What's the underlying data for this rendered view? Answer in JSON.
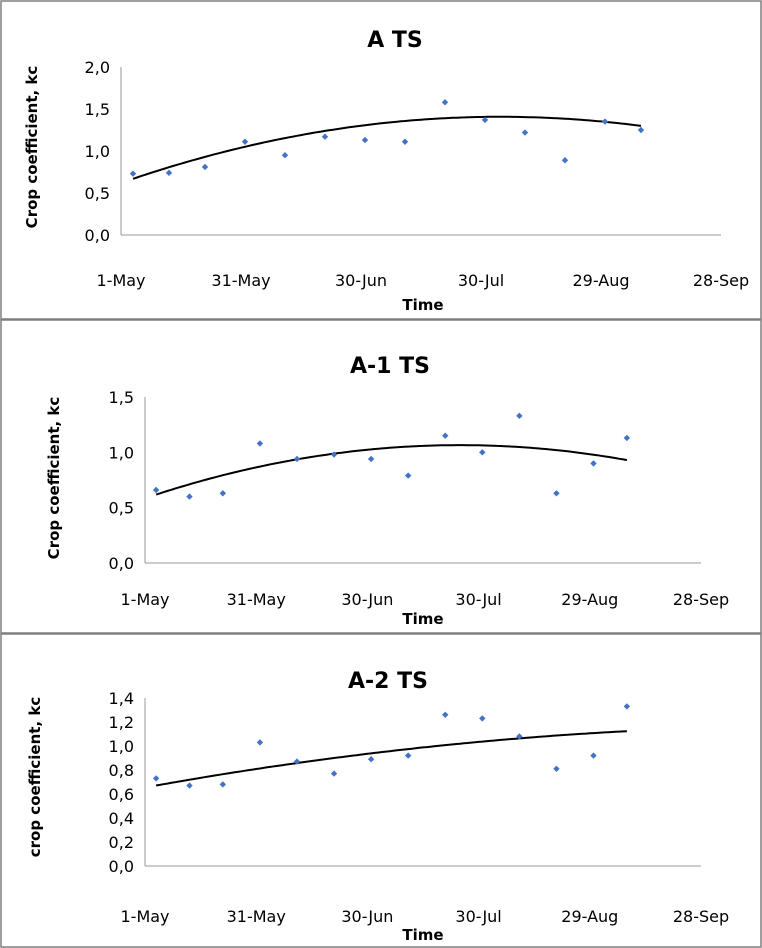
{
  "chart_data": [
    {
      "type": "scatter",
      "title": "A TS",
      "xlabel": "Time",
      "ylabel": "Crop coefficient, kc",
      "x_ticks": [
        "1-May",
        "31-May",
        "30-Jun",
        "30-Jul",
        "29-Aug",
        "28-Sep"
      ],
      "y_ticks": [
        "0,0",
        "0,5",
        "1,0",
        "1,5",
        "2,0"
      ],
      "ylim": [
        0,
        2.0
      ],
      "xlim_days": [
        0,
        150
      ],
      "points": [
        {
          "day": 3,
          "kc": 0.73
        },
        {
          "day": 12,
          "kc": 0.74
        },
        {
          "day": 21,
          "kc": 0.81
        },
        {
          "day": 31,
          "kc": 1.11
        },
        {
          "day": 41,
          "kc": 0.95
        },
        {
          "day": 51,
          "kc": 1.17
        },
        {
          "day": 61,
          "kc": 1.13
        },
        {
          "day": 71,
          "kc": 1.11
        },
        {
          "day": 81,
          "kc": 1.58
        },
        {
          "day": 91,
          "kc": 1.37
        },
        {
          "day": 101,
          "kc": 1.22
        },
        {
          "day": 111,
          "kc": 0.89
        },
        {
          "day": 121,
          "kc": 1.35
        },
        {
          "day": 130,
          "kc": 1.25
        }
      ],
      "trend": {
        "type": "polynomial",
        "days": [
          3,
          130
        ],
        "coef": [
          0.62,
          0.0166,
          -8.75e-05
        ]
      },
      "series_color": "#4472C4"
    },
    {
      "type": "scatter",
      "title": "A-1 TS",
      "xlabel": "Time",
      "ylabel": "Crop coefficient, kc",
      "x_ticks": [
        "1-May",
        "31-May",
        "30-Jun",
        "30-Jul",
        "29-Aug",
        "28-Sep"
      ],
      "y_ticks": [
        "0,0",
        "0,5",
        "1,0",
        "1,5"
      ],
      "ylim": [
        0,
        1.5
      ],
      "xlim_days": [
        0,
        150
      ],
      "points": [
        {
          "day": 3,
          "kc": 0.66
        },
        {
          "day": 12,
          "kc": 0.6
        },
        {
          "day": 21,
          "kc": 0.63
        },
        {
          "day": 31,
          "kc": 1.08
        },
        {
          "day": 41,
          "kc": 0.94
        },
        {
          "day": 51,
          "kc": 0.98
        },
        {
          "day": 61,
          "kc": 0.94
        },
        {
          "day": 71,
          "kc": 0.79
        },
        {
          "day": 81,
          "kc": 1.15
        },
        {
          "day": 91,
          "kc": 1.0
        },
        {
          "day": 101,
          "kc": 1.33
        },
        {
          "day": 111,
          "kc": 0.63
        },
        {
          "day": 121,
          "kc": 0.9
        },
        {
          "day": 130,
          "kc": 1.13
        }
      ],
      "trend": {
        "type": "polynomial",
        "days": [
          3,
          130
        ],
        "coef": [
          0.585,
          0.0113,
          -6.65e-05
        ]
      },
      "series_color": "#4472C4"
    },
    {
      "type": "scatter",
      "title": "A-2 TS",
      "xlabel": "Time",
      "ylabel": "crop coefficient, kc",
      "x_ticks": [
        "1-May",
        "31-May",
        "30-Jun",
        "30-Jul",
        "29-Aug",
        "28-Sep"
      ],
      "y_ticks": [
        "0,0",
        "0,2",
        "0,4",
        "0,6",
        "0,8",
        "1,0",
        "1,2",
        "1,4"
      ],
      "ylim": [
        0,
        1.4
      ],
      "xlim_days": [
        0,
        150
      ],
      "points": [
        {
          "day": 3,
          "kc": 0.73
        },
        {
          "day": 12,
          "kc": 0.67
        },
        {
          "day": 21,
          "kc": 0.68
        },
        {
          "day": 31,
          "kc": 1.03
        },
        {
          "day": 41,
          "kc": 0.87
        },
        {
          "day": 51,
          "kc": 0.77
        },
        {
          "day": 61,
          "kc": 0.89
        },
        {
          "day": 71,
          "kc": 0.92
        },
        {
          "day": 81,
          "kc": 1.26
        },
        {
          "day": 91,
          "kc": 1.23
        },
        {
          "day": 101,
          "kc": 1.08
        },
        {
          "day": 111,
          "kc": 0.81
        },
        {
          "day": 121,
          "kc": 0.92
        },
        {
          "day": 130,
          "kc": 1.33
        }
      ],
      "trend": {
        "type": "polynomial",
        "days": [
          3,
          130
        ],
        "coef": [
          0.654,
          0.0056,
          -1.53e-05
        ]
      },
      "series_color": "#4472C4"
    }
  ]
}
